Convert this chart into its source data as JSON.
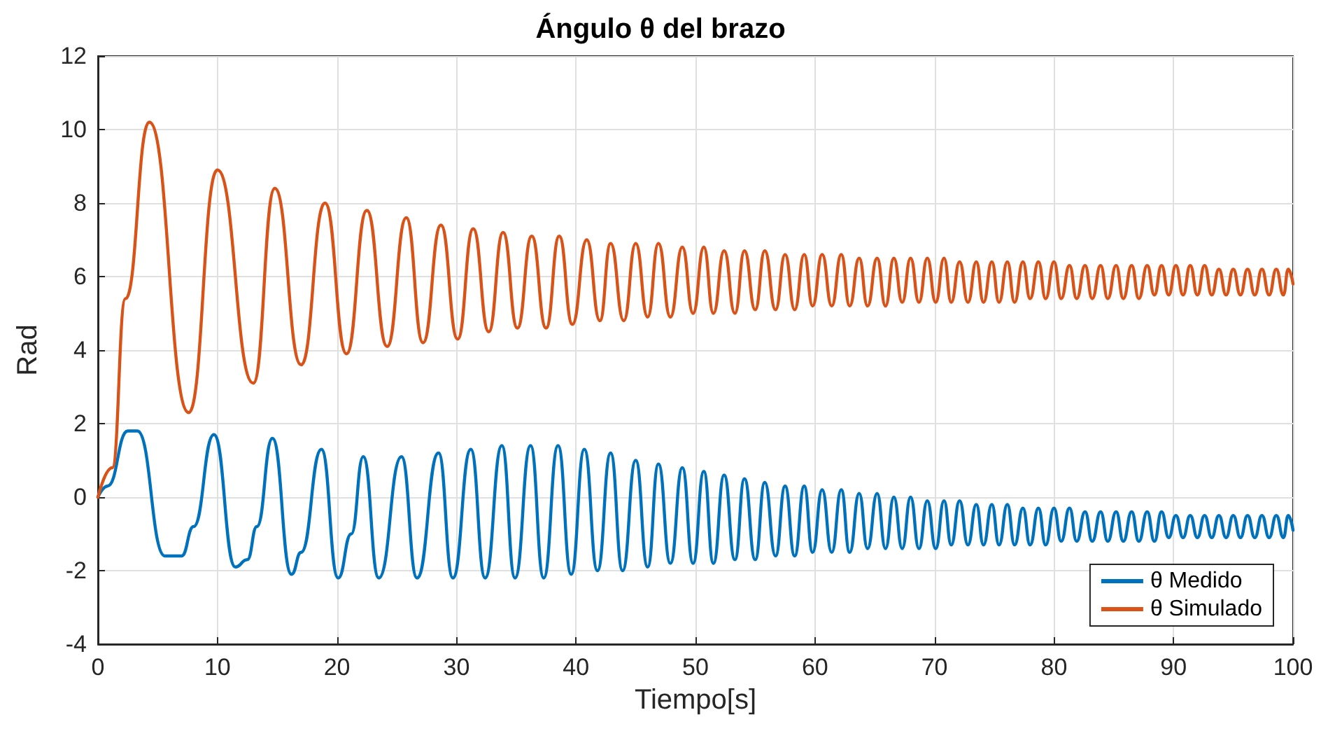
{
  "chart_data": {
    "type": "line",
    "title": "Ángulo θ del brazo",
    "xlabel": "Tiempo[s]",
    "ylabel": "Rad",
    "xlim": [
      0,
      100
    ],
    "xticks": [
      0,
      10,
      20,
      30,
      40,
      50,
      60,
      70,
      80,
      90,
      100
    ],
    "ylim": [
      -4,
      12
    ],
    "yticks": [
      -4,
      -2,
      0,
      2,
      4,
      6,
      8,
      10,
      12
    ],
    "grid": true,
    "legend": "bottom right",
    "marker": "none",
    "line_style": "solid",
    "series": [
      {
        "name": "θ Medido",
        "color": "#0072bd",
        "x": [
          0,
          0.8,
          2.5,
          3.3,
          5.6,
          7.0,
          8.0,
          9.7,
          11.5,
          12.5,
          13.3,
          14.6,
          16.2,
          17.0,
          18.7,
          20.1,
          21.2,
          22.2,
          23.5,
          25.4,
          26.7,
          28.5,
          29.7,
          31.2,
          32.4,
          33.8,
          34.9,
          36.2,
          37.3,
          38.5,
          39.6,
          40.7,
          41.8,
          42.9,
          43.9,
          45.0,
          46.0,
          46.9,
          47.9,
          48.9,
          49.8,
          50.7,
          51.5,
          52.4,
          53.3,
          54.1,
          55.0,
          55.8,
          56.7,
          57.5,
          58.3,
          59.1,
          59.8,
          60.6,
          61.4,
          62.2,
          62.9,
          63.7,
          64.4,
          65.2,
          65.9,
          66.6,
          67.3,
          68.0,
          68.7,
          69.4,
          70.1,
          70.8,
          71.4,
          72.1,
          72.8,
          73.5,
          74.1,
          74.8,
          75.4,
          76.1,
          76.7,
          77.4,
          78.0,
          78.7,
          79.3,
          80.0,
          80.6,
          81.3,
          81.9,
          82.6,
          83.2,
          83.9,
          84.5,
          85.2,
          85.8,
          86.5,
          87.1,
          87.8,
          88.4,
          89.0,
          89.6,
          90.2,
          90.8,
          91.4,
          92.0,
          92.6,
          93.2,
          93.8,
          94.4,
          95.0,
          95.6,
          96.2,
          96.8,
          97.4,
          98.0,
          98.6,
          99.2,
          99.6,
          100
        ],
        "values": [
          0,
          0.3,
          1.8,
          1.8,
          -1.6,
          -1.6,
          -0.8,
          1.7,
          -1.9,
          -1.7,
          -0.8,
          1.6,
          -2.1,
          -1.5,
          1.3,
          -2.2,
          -1.0,
          1.1,
          -2.2,
          1.1,
          -2.2,
          1.2,
          -2.2,
          1.3,
          -2.2,
          1.4,
          -2.2,
          1.4,
          -2.2,
          1.4,
          -2.1,
          1.3,
          -2.0,
          1.2,
          -2.0,
          1.0,
          -1.9,
          0.9,
          -1.8,
          0.8,
          -1.8,
          0.7,
          -1.8,
          0.6,
          -1.7,
          0.5,
          -1.7,
          0.4,
          -1.6,
          0.3,
          -1.6,
          0.3,
          -1.5,
          0.2,
          -1.5,
          0.2,
          -1.5,
          0.1,
          -1.4,
          0.1,
          -1.4,
          0.0,
          -1.4,
          0.0,
          -1.4,
          -0.1,
          -1.4,
          -0.1,
          -1.3,
          -0.1,
          -1.3,
          -0.2,
          -1.3,
          -0.2,
          -1.3,
          -0.2,
          -1.3,
          -0.3,
          -1.3,
          -0.3,
          -1.3,
          -0.3,
          -1.2,
          -0.3,
          -1.2,
          -0.4,
          -1.2,
          -0.4,
          -1.2,
          -0.4,
          -1.2,
          -0.4,
          -1.2,
          -0.4,
          -1.2,
          -0.4,
          -1.1,
          -0.5,
          -1.1,
          -0.5,
          -1.1,
          -0.5,
          -1.1,
          -0.5,
          -1.1,
          -0.5,
          -1.1,
          -0.5,
          -1.1,
          -0.5,
          -1.1,
          -0.5,
          -1.1,
          -0.5,
          -0.9
        ]
      },
      {
        "name": "θ Simulado",
        "color": "#d95319",
        "x": [
          0,
          1.2,
          2.3,
          4.3,
          7.6,
          10,
          13,
          14.8,
          17,
          19,
          20.8,
          22.5,
          24.2,
          25.8,
          27.2,
          28.7,
          30.1,
          31.4,
          32.7,
          33.9,
          35.1,
          36.3,
          37.5,
          38.6,
          39.7,
          40.9,
          42.0,
          42.9,
          44.0,
          45.0,
          46.0,
          46.9,
          47.9,
          48.9,
          49.8,
          50.7,
          51.5,
          52.4,
          53.3,
          54.1,
          55.0,
          55.8,
          56.7,
          57.5,
          58.3,
          59.1,
          59.8,
          60.6,
          61.4,
          62.2,
          62.9,
          63.7,
          64.4,
          65.2,
          65.9,
          66.6,
          67.3,
          68.0,
          68.7,
          69.4,
          70.1,
          70.8,
          71.4,
          72.1,
          72.8,
          73.5,
          74.1,
          74.8,
          75.4,
          76.1,
          76.7,
          77.4,
          78.0,
          78.7,
          79.3,
          80.0,
          80.6,
          81.3,
          81.9,
          82.6,
          83.2,
          83.9,
          84.5,
          85.2,
          85.8,
          86.5,
          87.1,
          87.8,
          88.4,
          89.0,
          89.6,
          90.2,
          90.8,
          91.4,
          92.0,
          92.6,
          93.2,
          93.8,
          94.4,
          95.0,
          95.6,
          96.2,
          96.8,
          97.4,
          98.0,
          98.6,
          99.2,
          99.6,
          100
        ],
        "values": [
          0,
          0.8,
          5.4,
          10.2,
          2.3,
          8.9,
          3.1,
          8.4,
          3.6,
          8.0,
          3.9,
          7.8,
          4.1,
          7.6,
          4.2,
          7.4,
          4.3,
          7.3,
          4.5,
          7.2,
          4.6,
          7.1,
          4.6,
          7.1,
          4.7,
          7.0,
          4.8,
          6.9,
          4.8,
          6.9,
          4.9,
          6.9,
          4.9,
          6.8,
          5.0,
          6.8,
          5.0,
          6.7,
          5.0,
          6.7,
          5.1,
          6.7,
          5.1,
          6.6,
          5.1,
          6.6,
          5.2,
          6.6,
          5.2,
          6.6,
          5.2,
          6.5,
          5.2,
          6.5,
          5.2,
          6.5,
          5.3,
          6.5,
          5.3,
          6.5,
          5.3,
          6.5,
          5.3,
          6.4,
          5.3,
          6.4,
          5.3,
          6.4,
          5.3,
          6.4,
          5.3,
          6.4,
          5.4,
          6.4,
          5.4,
          6.4,
          5.4,
          6.3,
          5.4,
          6.3,
          5.4,
          6.3,
          5.4,
          6.3,
          5.4,
          6.3,
          5.4,
          6.3,
          5.5,
          6.3,
          5.5,
          6.3,
          5.5,
          6.3,
          5.5,
          6.3,
          5.5,
          6.2,
          5.5,
          6.2,
          5.5,
          6.2,
          5.5,
          6.2,
          5.5,
          6.2,
          5.5,
          6.2,
          5.8
        ]
      }
    ]
  }
}
